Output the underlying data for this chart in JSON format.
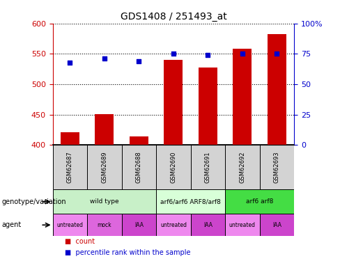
{
  "title": "GDS1408 / 251493_at",
  "samples": [
    "GSM62687",
    "GSM62689",
    "GSM62688",
    "GSM62690",
    "GSM62691",
    "GSM62692",
    "GSM62693"
  ],
  "bar_values": [
    421,
    451,
    414,
    540,
    528,
    558,
    583
  ],
  "percentile_values": [
    68,
    71,
    69,
    75,
    74,
    75,
    75
  ],
  "ylim_left": [
    400,
    600
  ],
  "ylim_right": [
    0,
    100
  ],
  "yticks_left": [
    400,
    450,
    500,
    550,
    600
  ],
  "yticks_right": [
    0,
    25,
    50,
    75,
    100
  ],
  "bar_color": "#cc0000",
  "dot_color": "#0000cc",
  "bar_width": 0.55,
  "sample_box_color": "#d3d3d3",
  "genotype_labels": [
    {
      "label": "wild type",
      "start": 0,
      "end": 3,
      "color": "#c8f0c8"
    },
    {
      "label": "arf6/arf6 ARF8/arf8",
      "start": 3,
      "end": 5,
      "color": "#d8ffd8"
    },
    {
      "label": "arf6 arf8",
      "start": 5,
      "end": 7,
      "color": "#44dd44"
    }
  ],
  "agent_labels": [
    {
      "label": "untreated",
      "start": 0,
      "end": 1,
      "color": "#ee88ee"
    },
    {
      "label": "mock",
      "start": 1,
      "end": 2,
      "color": "#dd66dd"
    },
    {
      "label": "IAA",
      "start": 2,
      "end": 3,
      "color": "#cc44cc"
    },
    {
      "label": "untreated",
      "start": 3,
      "end": 4,
      "color": "#ee88ee"
    },
    {
      "label": "IAA",
      "start": 4,
      "end": 5,
      "color": "#cc44cc"
    },
    {
      "label": "untreated",
      "start": 5,
      "end": 6,
      "color": "#ee88ee"
    },
    {
      "label": "IAA",
      "start": 6,
      "end": 7,
      "color": "#cc44cc"
    }
  ],
  "legend_count_color": "#cc0000",
  "legend_dot_color": "#0000cc",
  "bg_color": "#ffffff",
  "grid_color": "#000000",
  "left_tick_color": "#cc0000",
  "right_tick_color": "#0000cc",
  "left_label": "genotype/variation",
  "agent_label": "agent"
}
